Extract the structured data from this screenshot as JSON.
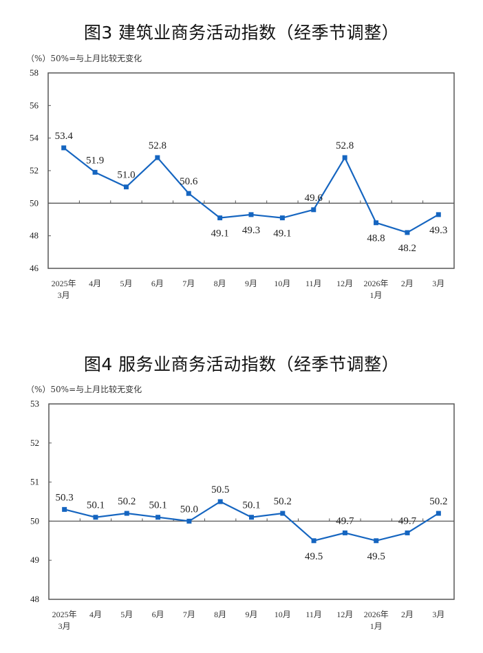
{
  "colors": {
    "line": "#1565C0",
    "axis": "#555555",
    "text": "#222222"
  },
  "chart_data": [
    {
      "type": "line",
      "title": "图3  建筑业商务活动指数（经季节调整）",
      "unit_note": "（%）50%=与上月比较无变化",
      "xlabel": "",
      "ylabel": "%",
      "ylim": [
        46,
        58
      ],
      "yticks": [
        46,
        48,
        50,
        52,
        54,
        56,
        58
      ],
      "reference_line": 50,
      "grid": false,
      "legend": null,
      "categories": [
        "2025年\n3月",
        "4月",
        "5月",
        "6月",
        "7月",
        "8月",
        "9月",
        "10月",
        "11月",
        "12月",
        "2026年\n1月",
        "2月",
        "3月"
      ],
      "series": [
        {
          "name": "建筑业商务活动指数",
          "values": [
            53.4,
            51.9,
            51.0,
            52.8,
            50.6,
            49.1,
            49.3,
            49.1,
            49.6,
            52.8,
            48.8,
            48.2,
            49.3
          ]
        }
      ],
      "label_position": [
        "above",
        "above",
        "above",
        "above",
        "above",
        "below",
        "below",
        "below",
        "above",
        "above",
        "below",
        "below",
        "below"
      ]
    },
    {
      "type": "line",
      "title": "图4  服务业商务活动指数（经季节调整）",
      "unit_note": "（%）50%=与上月比较无变化",
      "xlabel": "",
      "ylabel": "%",
      "ylim": [
        48,
        53
      ],
      "yticks": [
        48,
        49,
        50,
        51,
        52,
        53
      ],
      "reference_line": 50,
      "grid": false,
      "legend": null,
      "categories": [
        "2025年\n3月",
        "4月",
        "5月",
        "6月",
        "7月",
        "8月",
        "9月",
        "10月",
        "11月",
        "12月",
        "2026年\n1月",
        "2月",
        "3月"
      ],
      "series": [
        {
          "name": "服务业商务活动指数",
          "values": [
            50.3,
            50.1,
            50.2,
            50.1,
            50.0,
            50.5,
            50.1,
            50.2,
            49.5,
            49.7,
            49.5,
            49.7,
            50.2
          ]
        }
      ],
      "label_position": [
        "above",
        "above",
        "above",
        "above",
        "above",
        "above",
        "above",
        "above",
        "below",
        "above",
        "below",
        "above",
        "above"
      ]
    }
  ]
}
